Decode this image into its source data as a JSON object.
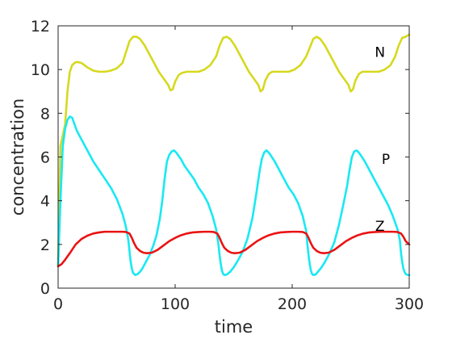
{
  "chart_data": {
    "type": "line",
    "title": "",
    "xlabel": "time",
    "ylabel": "concentration",
    "xlim": [
      0,
      300
    ],
    "ylim": [
      0,
      12
    ],
    "xticks": [
      0,
      100,
      200,
      300
    ],
    "yticks": [
      0,
      2,
      4,
      6,
      8,
      10,
      12
    ],
    "grid": false,
    "series": [
      {
        "name": "N",
        "color": "#d6d91e",
        "label_pos": [
          275,
          10.8
        ],
        "x": [
          0,
          2,
          4,
          6,
          8,
          10,
          12,
          14,
          16,
          20,
          25,
          30,
          35,
          40,
          45,
          50,
          55,
          58,
          61,
          64,
          67,
          70,
          74,
          78,
          82,
          86,
          90,
          94,
          96,
          98,
          100,
          103,
          106,
          110,
          115,
          120,
          125,
          130,
          135,
          138,
          141,
          144,
          147,
          151,
          155,
          159,
          163,
          167,
          171,
          173,
          175,
          177,
          180,
          183,
          187,
          192,
          197,
          202,
          207,
          212,
          215,
          218,
          221,
          224,
          228,
          232,
          236,
          240,
          244,
          248,
          250,
          252,
          254,
          257,
          260,
          264,
          269,
          274,
          279,
          284,
          288,
          291,
          294,
          297,
          300
        ],
        "y": [
          1.0,
          6.5,
          7.0,
          7.5,
          9.0,
          9.9,
          10.2,
          10.3,
          10.35,
          10.3,
          10.1,
          9.95,
          9.9,
          9.9,
          9.95,
          10.05,
          10.3,
          10.8,
          11.3,
          11.5,
          11.5,
          11.4,
          11.1,
          10.7,
          10.3,
          9.9,
          9.6,
          9.3,
          9.05,
          9.1,
          9.45,
          9.75,
          9.85,
          9.9,
          9.9,
          9.9,
          10.0,
          10.2,
          10.6,
          11.1,
          11.45,
          11.5,
          11.4,
          11.1,
          10.7,
          10.3,
          9.9,
          9.6,
          9.3,
          9.0,
          9.1,
          9.5,
          9.8,
          9.9,
          9.9,
          9.9,
          9.9,
          10.0,
          10.2,
          10.6,
          11.0,
          11.4,
          11.5,
          11.4,
          11.1,
          10.7,
          10.3,
          9.9,
          9.6,
          9.3,
          9.0,
          9.1,
          9.5,
          9.8,
          9.9,
          9.9,
          9.9,
          9.9,
          10.0,
          10.2,
          10.6,
          11.1,
          11.45,
          11.5,
          11.6
        ]
      },
      {
        "name": "P",
        "color": "#18e9f2",
        "label_pos": [
          280,
          5.9
        ],
        "x": [
          0,
          2,
          4,
          6,
          8,
          10,
          12,
          14,
          16,
          20,
          25,
          30,
          35,
          40,
          45,
          50,
          55,
          58,
          60,
          61,
          62,
          63,
          64,
          66,
          68,
          70,
          72,
          75,
          78,
          81,
          84,
          87,
          89,
          91,
          93,
          95,
          97,
          99,
          101,
          103,
          105,
          108,
          112,
          116,
          120,
          124,
          128,
          132,
          135,
          137,
          138,
          139,
          140,
          141,
          142,
          144,
          147,
          150,
          154,
          158,
          162,
          166,
          169,
          172,
          174,
          176,
          178,
          180,
          182,
          185,
          189,
          193,
          197,
          201,
          205,
          209,
          212,
          213,
          214,
          215,
          216,
          217,
          218,
          220,
          222,
          225,
          228,
          232,
          236,
          240,
          244,
          247,
          249,
          251,
          253,
          255,
          257,
          259,
          262,
          266,
          270,
          274,
          278,
          282,
          286,
          290,
          292,
          293,
          294,
          295,
          296,
          297,
          298,
          299,
          300
        ],
        "y": [
          1.0,
          4.0,
          6.5,
          7.3,
          7.7,
          7.85,
          7.8,
          7.5,
          7.2,
          6.8,
          6.3,
          5.8,
          5.4,
          5.0,
          4.6,
          4.1,
          3.4,
          2.8,
          2.2,
          1.7,
          1.2,
          0.9,
          0.7,
          0.6,
          0.65,
          0.75,
          0.9,
          1.2,
          1.5,
          1.9,
          2.4,
          3.2,
          4.0,
          5.0,
          5.8,
          6.1,
          6.25,
          6.3,
          6.2,
          6.05,
          5.9,
          5.6,
          5.3,
          5.0,
          4.6,
          4.3,
          3.9,
          3.3,
          2.7,
          2.0,
          1.5,
          1.1,
          0.8,
          0.65,
          0.6,
          0.62,
          0.75,
          0.95,
          1.3,
          1.7,
          2.3,
          3.2,
          4.2,
          5.3,
          5.9,
          6.2,
          6.3,
          6.2,
          6.05,
          5.8,
          5.4,
          5.0,
          4.6,
          4.3,
          3.9,
          3.3,
          2.6,
          2.0,
          1.5,
          1.1,
          0.8,
          0.65,
          0.6,
          0.62,
          0.75,
          0.95,
          1.2,
          1.6,
          2.1,
          2.9,
          3.9,
          4.7,
          5.4,
          6.0,
          6.25,
          6.3,
          6.2,
          6.05,
          5.8,
          5.4,
          5.0,
          4.6,
          4.2,
          3.8,
          3.3,
          2.7,
          2.2,
          1.6,
          1.2,
          0.9,
          0.75,
          0.65,
          0.62,
          0.6,
          0.6
        ]
      },
      {
        "name": "Z",
        "color": "#ea1313",
        "label_pos": [
          275,
          2.85
        ],
        "x": [
          0,
          3,
          6,
          10,
          15,
          20,
          25,
          30,
          35,
          40,
          45,
          50,
          55,
          58,
          61,
          63,
          65,
          67,
          70,
          73,
          76,
          80,
          85,
          90,
          95,
          100,
          105,
          110,
          115,
          120,
          125,
          130,
          133,
          136,
          138,
          140,
          142,
          145,
          148,
          151,
          155,
          160,
          165,
          170,
          175,
          180,
          185,
          190,
          195,
          200,
          205,
          209,
          212,
          214,
          216,
          218,
          221,
          224,
          227,
          231,
          236,
          241,
          246,
          251,
          256,
          261,
          266,
          271,
          276,
          281,
          286,
          290,
          293,
          295,
          297,
          300
        ],
        "y": [
          1.0,
          1.1,
          1.3,
          1.6,
          2.0,
          2.25,
          2.4,
          2.5,
          2.55,
          2.58,
          2.58,
          2.58,
          2.58,
          2.57,
          2.5,
          2.3,
          2.05,
          1.85,
          1.7,
          1.62,
          1.6,
          1.62,
          1.75,
          1.95,
          2.15,
          2.3,
          2.42,
          2.5,
          2.55,
          2.57,
          2.58,
          2.58,
          2.57,
          2.5,
          2.3,
          2.05,
          1.85,
          1.7,
          1.62,
          1.6,
          1.62,
          1.75,
          1.95,
          2.15,
          2.3,
          2.42,
          2.5,
          2.55,
          2.57,
          2.58,
          2.58,
          2.57,
          2.5,
          2.3,
          2.05,
          1.85,
          1.7,
          1.62,
          1.6,
          1.62,
          1.75,
          1.95,
          2.15,
          2.3,
          2.42,
          2.5,
          2.55,
          2.57,
          2.58,
          2.58,
          2.58,
          2.57,
          2.5,
          2.35,
          2.15,
          2.0
        ]
      }
    ]
  }
}
